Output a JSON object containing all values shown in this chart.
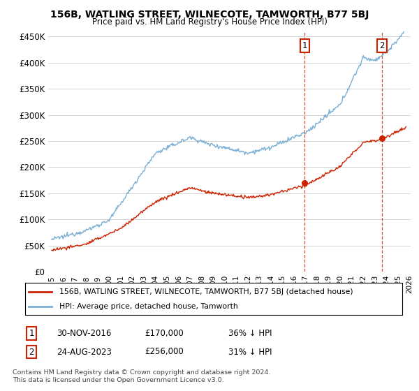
{
  "title": "156B, WATLING STREET, WILNECOTE, TAMWORTH, B77 5BJ",
  "subtitle": "Price paid vs. HM Land Registry's House Price Index (HPI)",
  "ylim": [
    0,
    460000
  ],
  "yticks": [
    0,
    50000,
    100000,
    150000,
    200000,
    250000,
    300000,
    350000,
    400000,
    450000
  ],
  "ytick_labels": [
    "£0",
    "£50K",
    "£100K",
    "£150K",
    "£200K",
    "£250K",
    "£300K",
    "£350K",
    "£400K",
    "£450K"
  ],
  "hpi_color": "#7bafd4",
  "price_color": "#cc2200",
  "legend_price_label": "156B, WATLING STREET, WILNECOTE, TAMWORTH, B77 5BJ (detached house)",
  "legend_hpi_label": "HPI: Average price, detached house, Tamworth",
  "annotation1": [
    "1",
    "30-NOV-2016",
    "£170,000",
    "36% ↓ HPI"
  ],
  "annotation2": [
    "2",
    "24-AUG-2023",
    "£256,000",
    "31% ↓ HPI"
  ],
  "footer": "Contains HM Land Registry data © Crown copyright and database right 2024.\nThis data is licensed under the Open Government Licence v3.0.",
  "background_color": "#ffffff",
  "grid_color": "#cccccc",
  "x_start_year": 1995,
  "x_end_year": 2026,
  "sale1_year": 2016.917,
  "sale1_price": 170000,
  "sale2_year": 2023.625,
  "sale2_price": 256000
}
